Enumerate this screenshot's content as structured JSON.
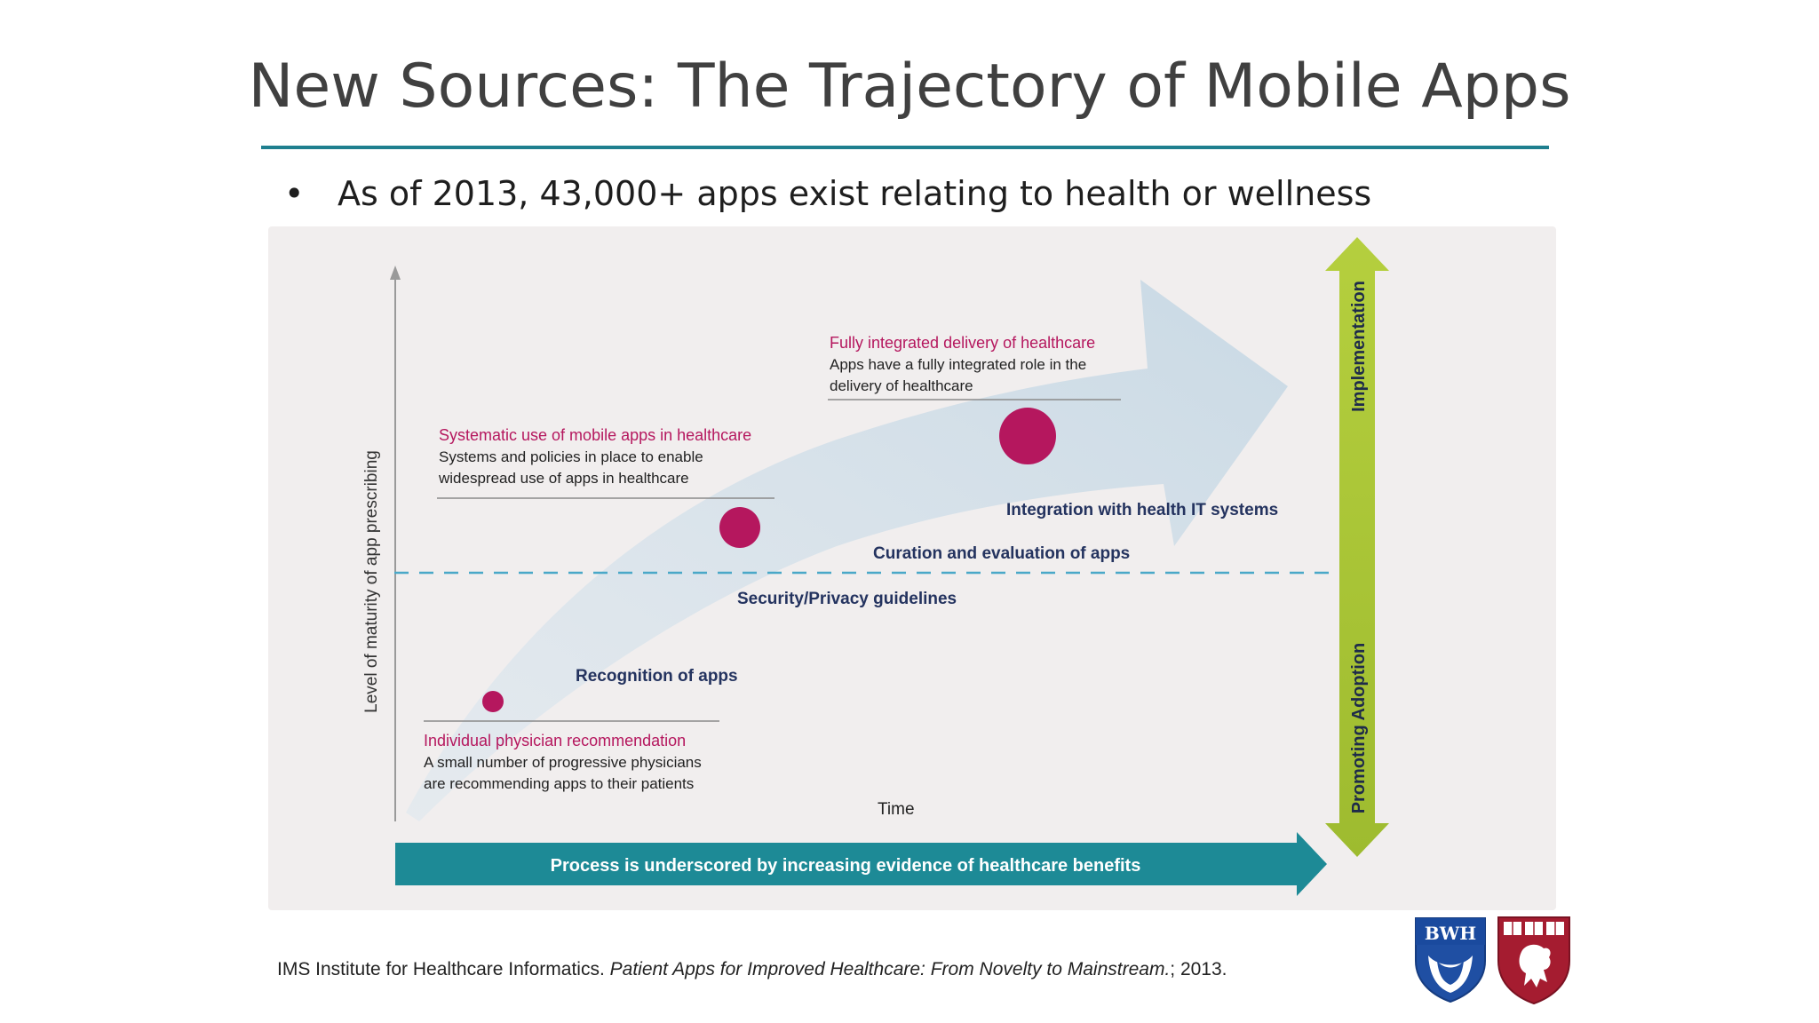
{
  "slide": {
    "title": "New Sources: The Trajectory of Mobile Apps",
    "bullet": "As of 2013, 43,000+ apps exist relating to health or wellness",
    "citation_prefix": "IMS Institute for Healthcare Informatics. ",
    "citation_title": "Patient Apps for Improved Healthcare: From Novelty to Mainstream.",
    "citation_suffix": "; 2013."
  },
  "diagram": {
    "y_axis_label": "Level of maturity of app prescribing",
    "x_axis_label": "Time",
    "bottom_arrow_text": "Process is underscored by increasing evidence of healthcare benefits",
    "right_top_label": "Implementation",
    "right_bottom_label": "Promoting Adoption",
    "stages": [
      {
        "title": "Individual physician recommendation",
        "lines": [
          "A small number of progressive physicians",
          "are recommending apps to their patients"
        ]
      },
      {
        "title": "Systematic use of mobile apps in healthcare",
        "lines": [
          "Systems and policies in place to enable",
          "widespread use of apps in healthcare"
        ]
      },
      {
        "title": "Fully integrated delivery of healthcare",
        "lines": [
          "Apps have a fully integrated role in the",
          "delivery of healthcare"
        ]
      }
    ],
    "milestones": [
      "Recognition of apps",
      "Security/Privacy guidelines",
      "Curation and evaluation of apps",
      "Integration with health IT systems"
    ],
    "colors": {
      "magenta": "#b5175e",
      "navy": "#24335f",
      "teal": "#1d8a96",
      "lime": "#a9c53a",
      "arrow_fill": "#cfdde6",
      "dashed_line": "#4aa8c8"
    }
  },
  "logos": {
    "bwh_text": "BWH"
  }
}
